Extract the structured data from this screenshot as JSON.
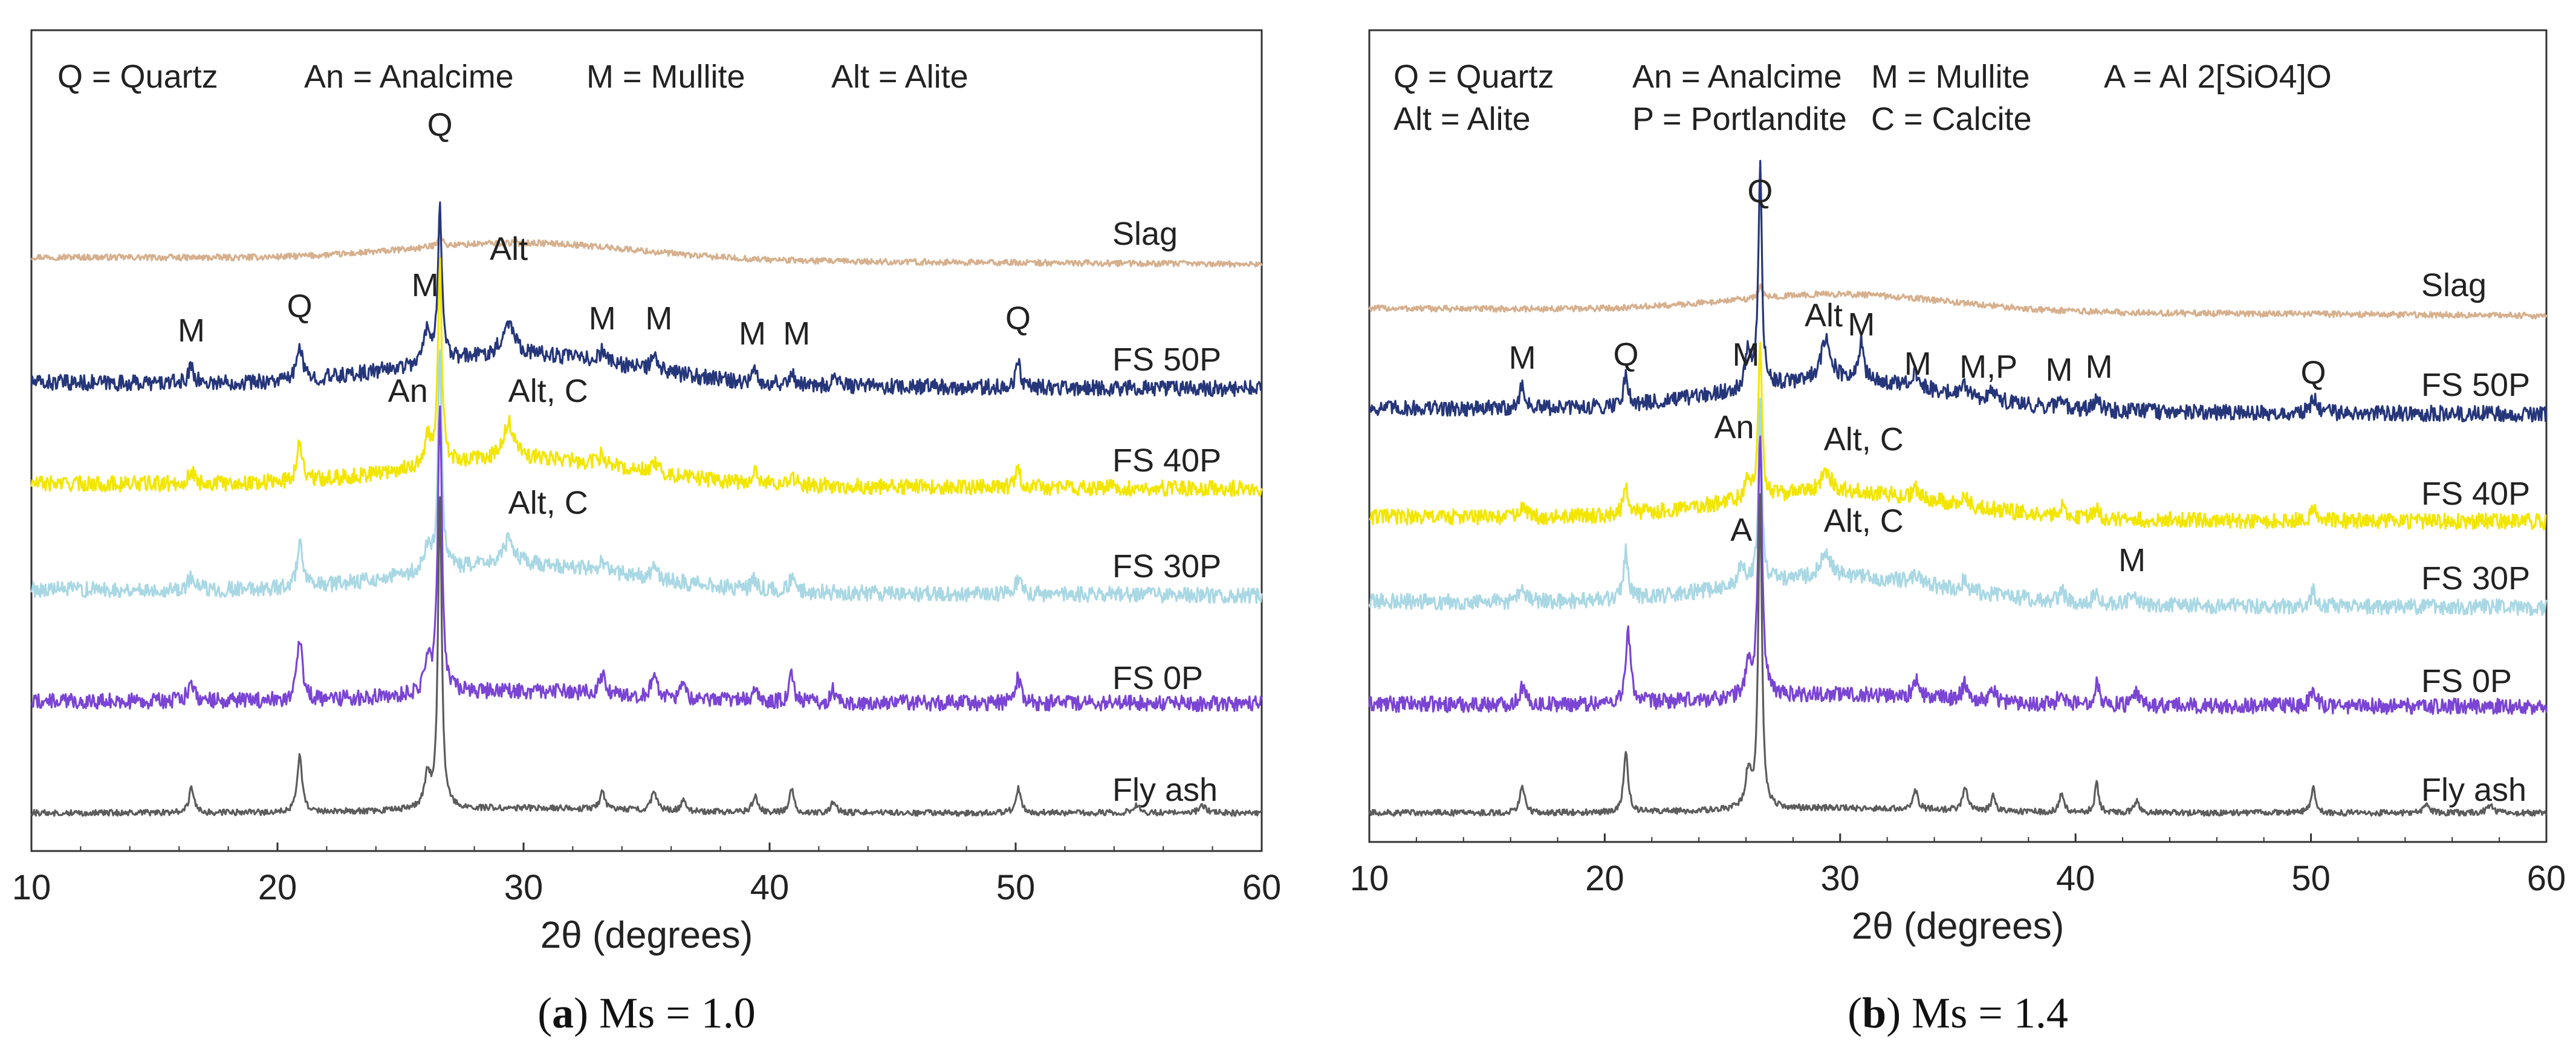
{
  "colors": {
    "slag": "#d6b08e",
    "fs50p": "#26367a",
    "fs40p": "#f2e600",
    "fs30p": "#a9d8e4",
    "fs0p": "#7a44d4",
    "flyash": "#5c5c5c",
    "frame": "#333333"
  },
  "chart_data": [
    {
      "type": "line",
      "subtitle_letter": "a",
      "subtitle_rest": ") Ms = 1.0",
      "subtitle_open": "(",
      "xlabel": "2θ (degrees)",
      "ylabel": "",
      "xlim": [
        10,
        60
      ],
      "xticks": [
        "10",
        "20",
        "30",
        "40",
        "50",
        "60"
      ],
      "legend_lines": [
        [
          "Q = Quartz",
          "An = Analcime",
          "M = Mullite",
          "Alt = Alite"
        ]
      ],
      "series": [
        {
          "name": "Slag",
          "label": "Slag",
          "color_key": "slag"
        },
        {
          "name": "FS 50P",
          "label": "FS 50P",
          "color_key": "fs50p"
        },
        {
          "name": "FS 40P",
          "label": "FS 40P",
          "color_key": "fs40p"
        },
        {
          "name": "FS 30P",
          "label": "FS 30P",
          "color_key": "fs30p"
        },
        {
          "name": "FS 0P",
          "label": "FS 0P",
          "color_key": "fs0p"
        },
        {
          "name": "Fly ash",
          "label": "Fly ash",
          "color_key": "flyash"
        }
      ],
      "peak_labels": [
        {
          "text": "Q",
          "x": 26.6,
          "series": "top"
        },
        {
          "text": "M",
          "x": 16.5,
          "series": "FS 50P"
        },
        {
          "text": "Q",
          "x": 20.9,
          "series": "FS 50P"
        },
        {
          "text": "M",
          "x": 26.0,
          "series": "FS 50P"
        },
        {
          "text": "Alt",
          "x": 29.4,
          "series": "FS 50P"
        },
        {
          "text": "M",
          "x": 33.2,
          "series": "FS 50P"
        },
        {
          "text": "M",
          "x": 35.5,
          "series": "FS 50P"
        },
        {
          "text": "M",
          "x": 39.3,
          "series": "FS 50P"
        },
        {
          "text": "M",
          "x": 41.1,
          "series": "FS 50P"
        },
        {
          "text": "Q",
          "x": 50.1,
          "series": "FS 50P"
        },
        {
          "text": "An",
          "x": 25.3,
          "series": "FS 40P"
        },
        {
          "text": "Alt, C",
          "x": 31.0,
          "series": "FS 40P"
        },
        {
          "text": "Alt, C",
          "x": 31.0,
          "series": "FS 30P"
        }
      ]
    },
    {
      "type": "line",
      "subtitle_letter": "b",
      "subtitle_rest": ") Ms = 1.4",
      "subtitle_open": "(",
      "xlabel": "2θ (degrees)",
      "ylabel": "",
      "xlim": [
        10,
        60
      ],
      "xticks": [
        "10",
        "20",
        "30",
        "40",
        "50",
        "60"
      ],
      "legend_lines": [
        [
          "Q = Quartz",
          "An = Analcime",
          "M = Mullite",
          "A = Al 2[SiO4]O"
        ],
        [
          "Alt = Alite",
          "P = Portlandite",
          "C = Calcite"
        ]
      ],
      "series": [
        {
          "name": "Slag",
          "label": "Slag",
          "color_key": "slag"
        },
        {
          "name": "FS 50P",
          "label": "FS 50P",
          "color_key": "fs50p"
        },
        {
          "name": "FS 40P",
          "label": "FS 40P",
          "color_key": "fs40p"
        },
        {
          "name": "FS 30P",
          "label": "FS 30P",
          "color_key": "fs30p"
        },
        {
          "name": "FS 0P",
          "label": "FS 0P",
          "color_key": "fs0p"
        },
        {
          "name": "Fly ash",
          "label": "Fly ash",
          "color_key": "flyash"
        }
      ],
      "peak_labels": [
        {
          "text": "Q",
          "x": 26.6,
          "series": "top"
        },
        {
          "text": "M",
          "x": 16.5,
          "series": "FS 50P"
        },
        {
          "text": "Q",
          "x": 20.9,
          "series": "FS 50P"
        },
        {
          "text": "M",
          "x": 26.0,
          "series": "FS 50P"
        },
        {
          "text": "Alt",
          "x": 29.3,
          "series": "FS 50P"
        },
        {
          "text": "M",
          "x": 30.9,
          "series": "FS 50P"
        },
        {
          "text": "M",
          "x": 33.3,
          "series": "FS 50P"
        },
        {
          "text": "M,P",
          "x": 36.3,
          "series": "FS 50P"
        },
        {
          "text": "M",
          "x": 39.3,
          "series": "FS 50P"
        },
        {
          "text": "M",
          "x": 41.0,
          "series": "FS 50P"
        },
        {
          "text": "Q",
          "x": 50.1,
          "series": "FS 50P"
        },
        {
          "text": "An",
          "x": 25.5,
          "series": "FS 40P"
        },
        {
          "text": "Alt, C",
          "x": 31.0,
          "series": "FS 40P"
        },
        {
          "text": "A",
          "x": 25.8,
          "series": "FS 30P"
        },
        {
          "text": "Alt, C",
          "x": 31.0,
          "series": "FS 30P"
        },
        {
          "text": "M",
          "x": 42.4,
          "series": "FS 30P"
        }
      ]
    }
  ]
}
